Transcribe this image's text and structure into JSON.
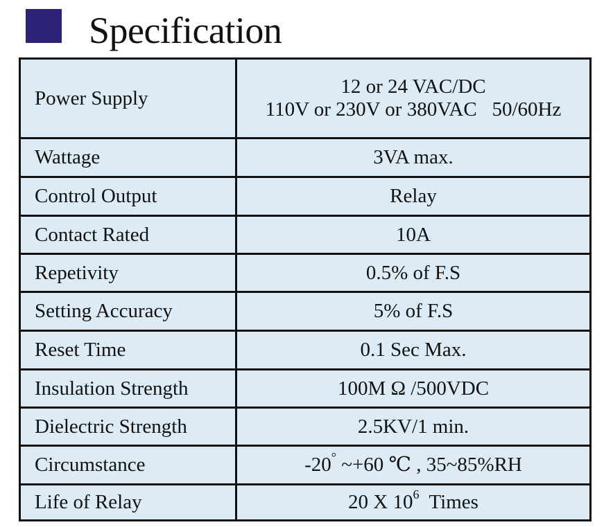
{
  "header": {
    "title": "Specification",
    "square_color": "#2c2377"
  },
  "colors": {
    "row_shade": "#dcebf6",
    "row_plain": "#ffffff",
    "border": "#111111"
  },
  "specs": [
    {
      "label": "Power Supply",
      "value_line1": "12 or 24 VAC/DC",
      "value_line2": "110V or 230V or 380VAC   50/60Hz"
    },
    {
      "label": "Wattage",
      "value": "3VA max."
    },
    {
      "label": "Control Output",
      "value": "Relay"
    },
    {
      "label": "Contact Rated",
      "value": "10A"
    },
    {
      "label": "Repetivity",
      "value": "0.5% of F.S"
    },
    {
      "label": "Setting Accuracy",
      "value": "5% of F.S"
    },
    {
      "label": "Reset Time",
      "value": "0.1 Sec Max."
    },
    {
      "label": "Insulation Strength",
      "value": "100M Ω /500VDC"
    },
    {
      "label": "Dielectric Strength",
      "value": "2.5KV/1 min."
    },
    {
      "label": "Circumstance",
      "value_pre": "-20",
      "value_sup": "°",
      "value_post": " ~+60 ℃ , 35~85%RH"
    },
    {
      "label": "Life of Relay",
      "value_pre": "20 X 10",
      "value_sup": "6",
      "value_post": "  Times"
    }
  ]
}
